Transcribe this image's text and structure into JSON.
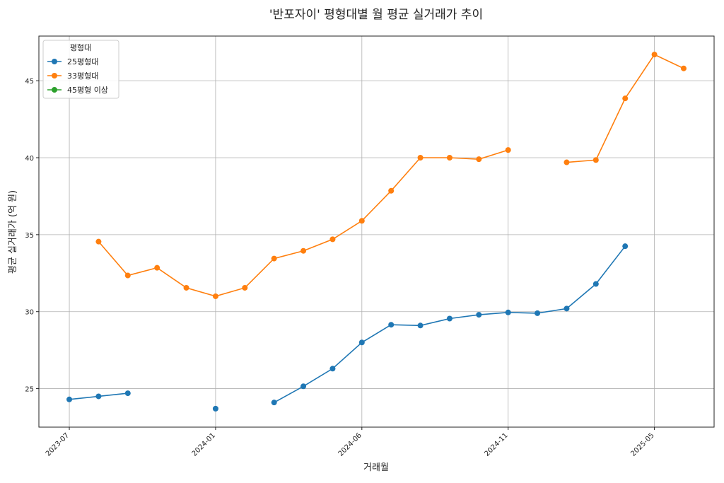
{
  "chart_data": {
    "type": "line",
    "title": "'반포자이' 평형대별 월 평균 실거래가 추이",
    "x_label": "거래월",
    "y_label": "평균 실거래가 (억 원)",
    "legend_title": "평형대",
    "legend": "upper left",
    "grid": true,
    "categories": [
      "2023-07",
      null,
      null,
      null,
      null,
      "2024-01",
      null,
      null,
      null,
      null,
      "2024-06",
      null,
      null,
      null,
      null,
      "2024-11",
      null,
      null,
      null,
      null,
      "2025-05",
      null
    ],
    "series": [
      {
        "name": "25평형대",
        "color": "#1f77b4",
        "values": [
          24.3,
          24.5,
          24.7,
          null,
          null,
          23.7,
          null,
          24.1,
          25.15,
          26.3,
          28.0,
          29.15,
          29.1,
          29.55,
          29.8,
          29.95,
          29.9,
          30.2,
          31.8,
          34.25,
          null,
          null
        ]
      },
      {
        "name": "33평형대",
        "color": "#ff7f0e",
        "values": [
          null,
          34.55,
          32.35,
          32.85,
          31.55,
          31.0,
          31.55,
          33.45,
          33.95,
          34.7,
          35.9,
          37.85,
          40.0,
          40.0,
          39.9,
          40.5,
          null,
          39.7,
          39.85,
          43.85,
          46.7,
          45.8
        ]
      },
      {
        "name": "45평형 이상",
        "color": "#2ca02c",
        "values": [
          null,
          null,
          null,
          null,
          null,
          null,
          null,
          null,
          null,
          null,
          null,
          null,
          null,
          null,
          null,
          null,
          null,
          null,
          null,
          null,
          null,
          null
        ]
      }
    ],
    "ylim": [
      22.5,
      47.9
    ],
    "yticks": [
      25,
      30,
      35,
      40,
      45
    ]
  }
}
